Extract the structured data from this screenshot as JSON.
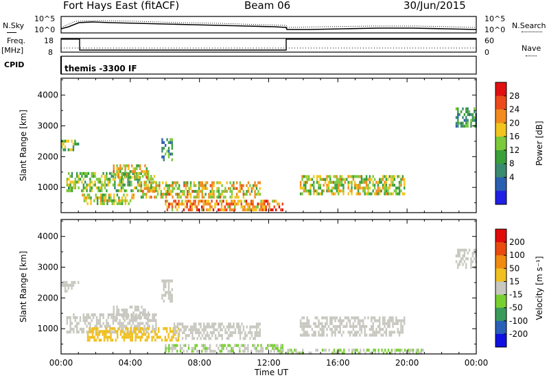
{
  "header": {
    "station": "Fort Hays East (fitACF)",
    "beam": "Beam 06",
    "date": "30/Jun/2015"
  },
  "strip_labels": {
    "nsky": "N.Sky",
    "nsearch": "N.Search",
    "freq": "Freq.",
    "freq_unit": "[MHz]",
    "nave": "Nave",
    "cpid": "CPID",
    "cpid_value": "themis -3300 IF",
    "nsky_ticks": [
      "10^5",
      "10^0"
    ],
    "nsearch_ticks": [
      "10^5",
      "10^0"
    ],
    "freq_ticks": [
      "18",
      "8"
    ],
    "nave_ticks": [
      "60",
      "0"
    ]
  },
  "colors": {
    "power": [
      "#1f1fe6",
      "#2b5fb0",
      "#3a8a6f",
      "#3aa03a",
      "#7cc93a",
      "#f2c41e",
      "#f28a1e",
      "#ec4a1a",
      "#e01010"
    ],
    "velocity": [
      "#1010e0",
      "#2a60b8",
      "#3a9a5a",
      "#78d030",
      "#c8c8c0",
      "#f0c020",
      "#f08a10",
      "#e84a10",
      "#e00a0a"
    ]
  },
  "chart_data": [
    {
      "type": "heatmap",
      "name": "power",
      "xlabel": "",
      "ylabel": "Slant Range [km]",
      "xlim": [
        0,
        24
      ],
      "ylim": [
        180,
        4550
      ],
      "y_ticks": [
        "1000",
        "2000",
        "3000",
        "4000"
      ],
      "x_ticks": [
        "00:00",
        "04:00",
        "08:00",
        "12:00",
        "16:00",
        "20:00",
        "00:00"
      ],
      "colorbar": {
        "label": "Power [dB]",
        "ticks": [
          "28",
          "24",
          "20",
          "16",
          "12",
          "8",
          "4"
        ],
        "range": [
          0,
          30
        ]
      },
      "echo_regions": [
        {
          "t_start": 0.0,
          "t_end": 1.0,
          "range_start": 2200,
          "range_end": 2550,
          "value": 14
        },
        {
          "t_start": 0.3,
          "t_end": 5.5,
          "range_start": 900,
          "range_end": 1500,
          "value": 14
        },
        {
          "t_start": 3.0,
          "t_end": 5.0,
          "range_start": 1300,
          "range_end": 1750,
          "value": 18
        },
        {
          "t_start": 1.2,
          "t_end": 4.2,
          "range_start": 500,
          "range_end": 800,
          "value": 16
        },
        {
          "t_start": 4.5,
          "t_end": 11.5,
          "range_start": 700,
          "range_end": 1200,
          "value": 18
        },
        {
          "t_start": 6.0,
          "t_end": 12.8,
          "range_start": 250,
          "range_end": 600,
          "value": 22
        },
        {
          "t_start": 13.8,
          "t_end": 19.8,
          "range_start": 800,
          "range_end": 1400,
          "value": 16
        },
        {
          "t_start": 22.8,
          "t_end": 24.0,
          "range_start": 3000,
          "range_end": 3600,
          "value": 10
        },
        {
          "t_start": 5.8,
          "t_end": 6.4,
          "range_start": 1900,
          "range_end": 2600,
          "value": 10
        }
      ]
    },
    {
      "type": "heatmap",
      "name": "velocity",
      "xlabel": "Time UT",
      "ylabel": "Slant Range [km]",
      "xlim": [
        0,
        24
      ],
      "ylim": [
        180,
        4550
      ],
      "y_ticks": [
        "1000",
        "2000",
        "3000",
        "4000"
      ],
      "x_ticks": [
        "00:00",
        "04:00",
        "08:00",
        "12:00",
        "16:00",
        "20:00",
        "00:00"
      ],
      "colorbar": {
        "label": "Velocity [m s⁻¹]",
        "ticks": [
          "200",
          "100",
          "50",
          "15",
          "-15",
          "-50",
          "-100",
          "-200"
        ],
        "range": [
          -250,
          250
        ]
      },
      "echo_regions": [
        {
          "t_start": 0.0,
          "t_end": 1.0,
          "range_start": 2200,
          "range_end": 2550,
          "value": 0
        },
        {
          "t_start": 0.3,
          "t_end": 5.5,
          "range_start": 900,
          "range_end": 1500,
          "value": 0
        },
        {
          "t_start": 3.0,
          "t_end": 5.0,
          "range_start": 1300,
          "range_end": 1750,
          "value": 0
        },
        {
          "t_start": 1.5,
          "t_end": 6.8,
          "range_start": 650,
          "range_end": 1050,
          "value": 60
        },
        {
          "t_start": 6.5,
          "t_end": 11.5,
          "range_start": 700,
          "range_end": 1200,
          "value": 0
        },
        {
          "t_start": 6.0,
          "t_end": 12.8,
          "range_start": 250,
          "range_end": 500,
          "value": -25
        },
        {
          "t_start": 13.8,
          "t_end": 19.8,
          "range_start": 800,
          "range_end": 1400,
          "value": 0
        },
        {
          "t_start": 12.5,
          "t_end": 21.0,
          "range_start": 180,
          "range_end": 350,
          "value": -25
        },
        {
          "t_start": 22.8,
          "t_end": 24.0,
          "range_start": 3000,
          "range_end": 3600,
          "value": 0
        },
        {
          "t_start": 5.8,
          "t_end": 6.4,
          "range_start": 1900,
          "range_end": 2600,
          "value": 0
        }
      ]
    }
  ]
}
